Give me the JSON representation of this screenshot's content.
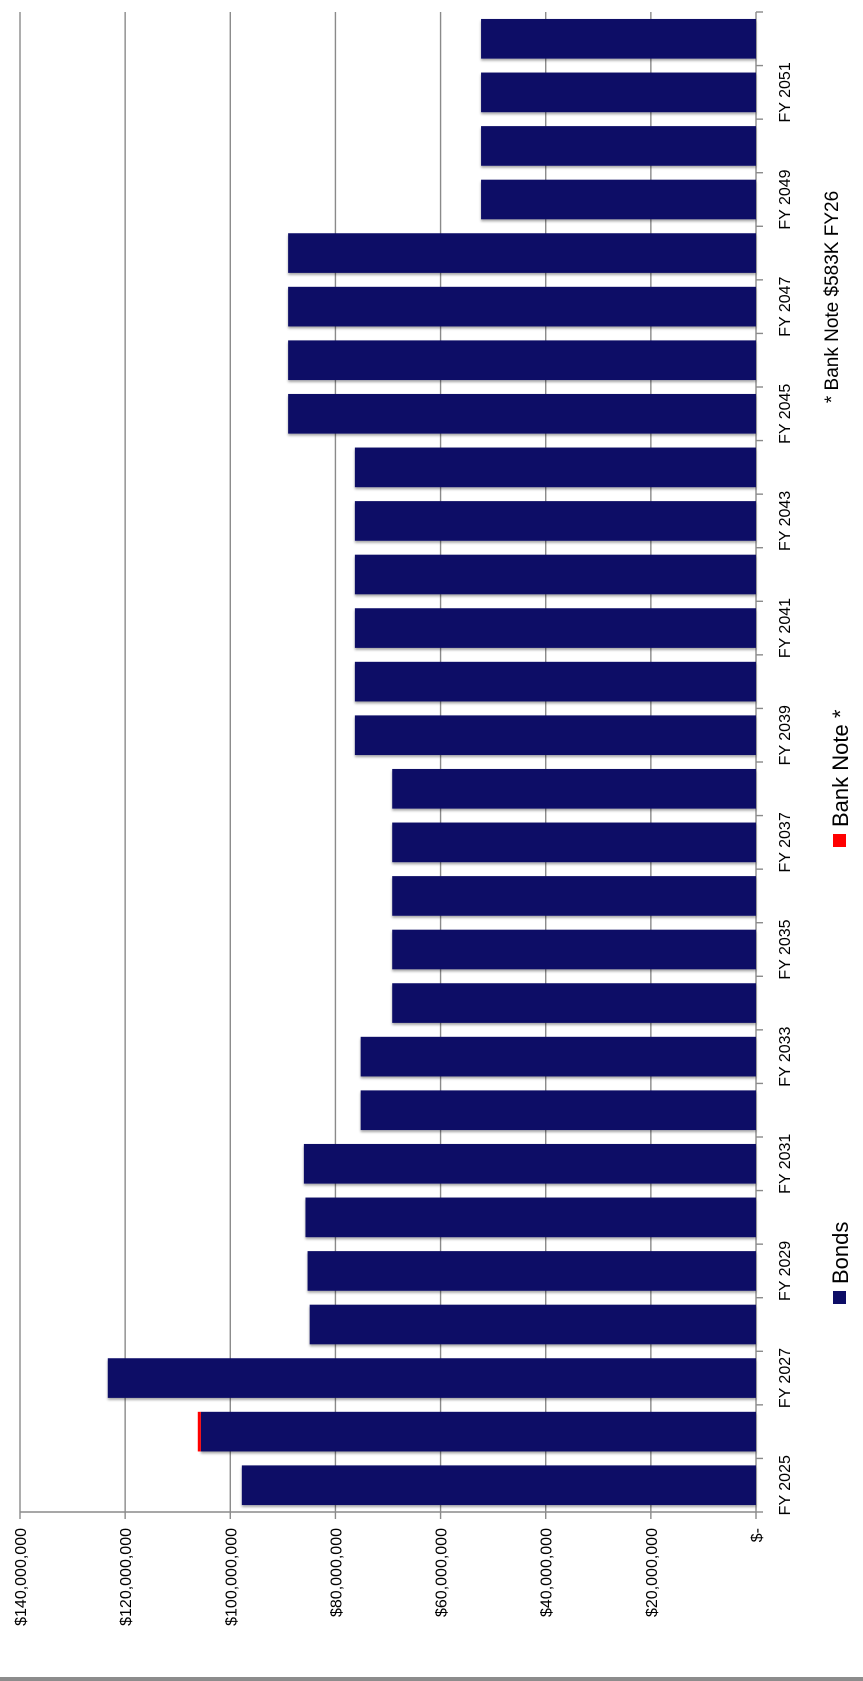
{
  "chart_data": {
    "type": "bar",
    "orientation": "rotated 90° clockwise (vertical columns drawn sideways)",
    "categories": [
      "FY 2025",
      "FY 2026",
      "FY 2027",
      "FY 2028",
      "FY 2029",
      "FY 2030",
      "FY 2031",
      "FY 2032",
      "FY 2033",
      "FY 2034",
      "FY 2035",
      "FY 2036",
      "FY 2037",
      "FY 2038",
      "FY 2039",
      "FY 2040",
      "FY 2041",
      "FY 2042",
      "FY 2043",
      "FY 2044",
      "FY 2045",
      "FY 2046",
      "FY 2047",
      "FY 2048",
      "FY 2049",
      "FY 2050",
      "FY 2051",
      "FY 2052"
    ],
    "category_tick_labels": [
      "FY 2025",
      "FY 2027",
      "FY 2029",
      "FY 2031",
      "FY 2033",
      "FY 2035",
      "FY 2037",
      "FY 2039",
      "FY 2041",
      "FY 2043",
      "FY 2045",
      "FY 2047",
      "FY 2049",
      "FY 2051"
    ],
    "series": [
      {
        "name": "Bonds",
        "color": "#0d0d66",
        "values": [
          97800000,
          105600000,
          123300000,
          84900000,
          85300000,
          85700000,
          86000000,
          75200000,
          75200000,
          69200000,
          69200000,
          69200000,
          69200000,
          69200000,
          76300000,
          76300000,
          76300000,
          76300000,
          76300000,
          76300000,
          89000000,
          89000000,
          89000000,
          89000000,
          52300000,
          52300000,
          52300000,
          52300000
        ]
      },
      {
        "name": "Bank Note *",
        "color": "#ff0000",
        "values": [
          0,
          583000,
          0,
          0,
          0,
          0,
          0,
          0,
          0,
          0,
          0,
          0,
          0,
          0,
          0,
          0,
          0,
          0,
          0,
          0,
          0,
          0,
          0,
          0,
          0,
          0,
          0,
          0
        ]
      }
    ],
    "ylim": [
      0,
      140000000
    ],
    "y_ticks": [
      0,
      20000000,
      40000000,
      60000000,
      80000000,
      100000000,
      120000000,
      140000000
    ],
    "y_tick_labels": [
      "$-",
      "$20,000,000",
      "$40,000,000",
      "$60,000,000",
      "$80,000,000",
      "$100,000,000",
      "$120,000,000",
      "$140,000,000"
    ],
    "grid": true,
    "legend_placement": "bottom",
    "note": "* Bank Note  $583K FY26",
    "title": "",
    "xlabel": "",
    "ylabel": ""
  }
}
